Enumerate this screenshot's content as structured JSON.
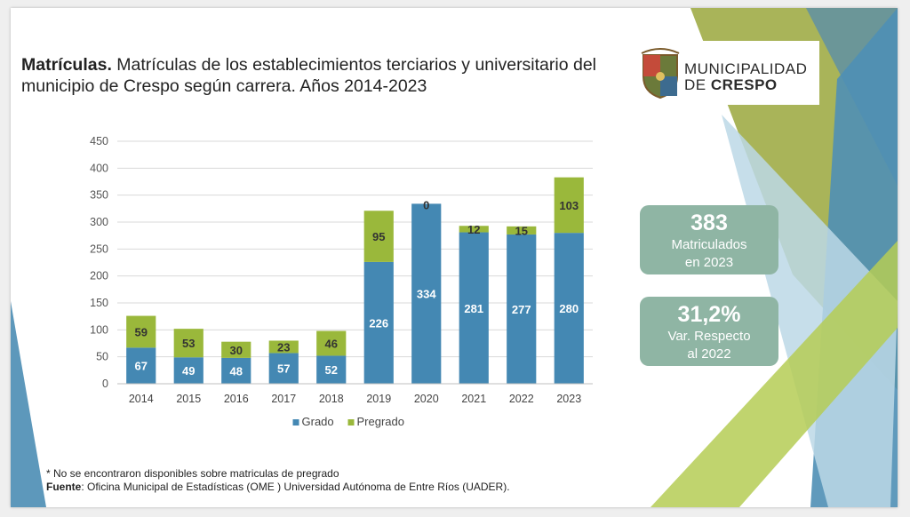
{
  "title": {
    "bold": "Matrículas.",
    "rest": " Matrículas de los establecimientos terciarios y universitario del municipio de Crespo según carrera. Años 2014-2023"
  },
  "logo": {
    "line1": "MUNICIPALIDAD",
    "line2_prefix": "DE ",
    "line2_bold": "CRESPO"
  },
  "kpis": [
    {
      "value": "383",
      "label_line1": "Matriculados",
      "label_line2": "en 2023"
    },
    {
      "value": "31,2%",
      "label_line1": "Var. Respecto",
      "label_line2": "al 2022"
    }
  ],
  "footnote": {
    "note": "* No se encontraron disponibles sobre matriculas de pregrado",
    "source_label": "Fuente",
    "source_text": ": Oficina Municipal de Estadísticas (OME ) Universidad Autónoma de Entre Ríos (UADER)."
  },
  "colors": {
    "grado": "#4488b3",
    "pregrado": "#9ab83b",
    "kpi_box": "#8fb5a4",
    "deco_green": "#8a9a3a",
    "deco_blue": "#4f8fb5"
  },
  "chart_data": {
    "type": "bar",
    "stacked": true,
    "categories": [
      "2014",
      "2015",
      "2016",
      "2017",
      "2018",
      "2019",
      "2020",
      "2021",
      "2022",
      "2023"
    ],
    "series": [
      {
        "name": "Grado",
        "values": [
          67,
          49,
          48,
          57,
          52,
          226,
          334,
          281,
          277,
          280
        ]
      },
      {
        "name": "Pregrado",
        "values": [
          59,
          53,
          30,
          23,
          46,
          95,
          0,
          12,
          15,
          103
        ]
      }
    ],
    "yticks": [
      0,
      50,
      100,
      150,
      200,
      250,
      300,
      350,
      400,
      450
    ],
    "ylim": [
      0,
      450
    ],
    "grid": true,
    "legend": "bottom"
  }
}
